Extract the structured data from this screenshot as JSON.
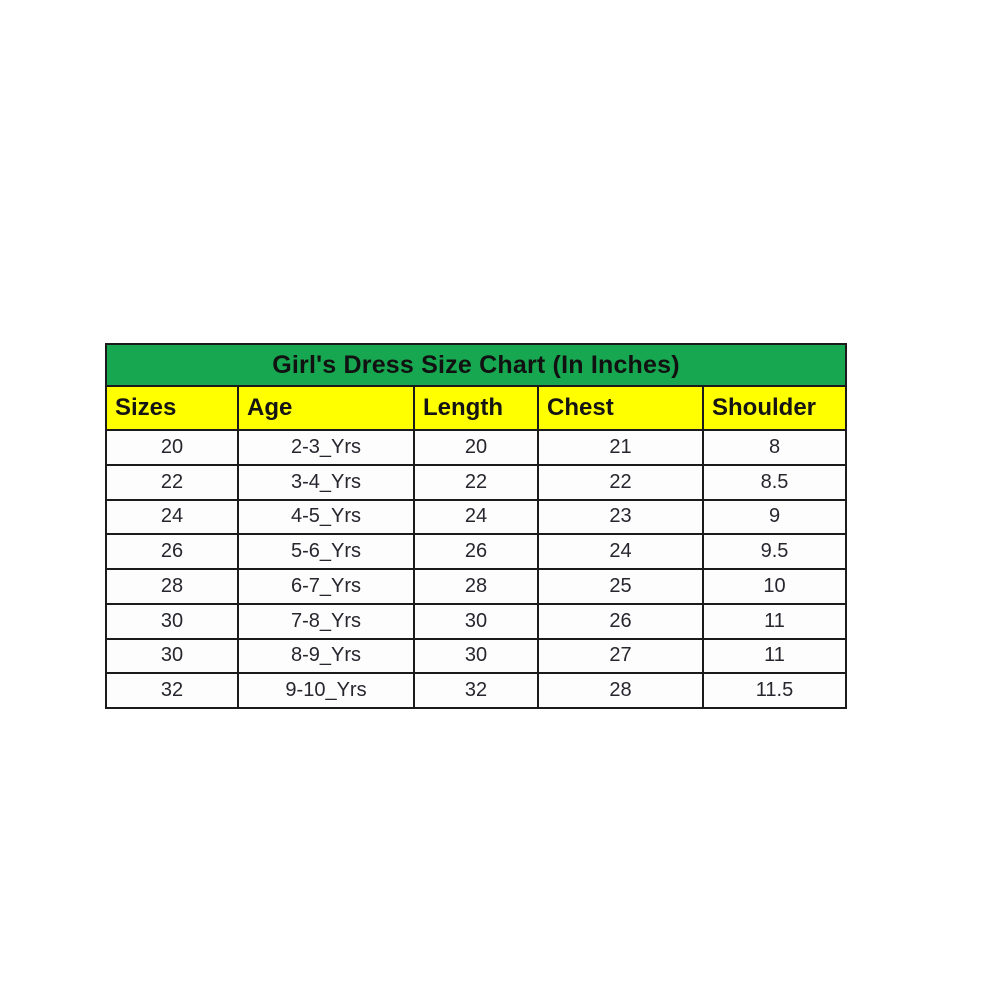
{
  "chart_data": {
    "type": "table",
    "title": "Girl's Dress Size Chart (In Inches)",
    "columns": [
      "Sizes",
      "Age",
      "Length",
      "Chest",
      "Shoulder"
    ],
    "rows": [
      [
        "20",
        "2-3_Yrs",
        "20",
        "21",
        "8"
      ],
      [
        "22",
        "3-4_Yrs",
        "22",
        "22",
        "8.5"
      ],
      [
        "24",
        "4-5_Yrs",
        "24",
        "23",
        "9"
      ],
      [
        "26",
        "5-6_Yrs",
        "26",
        "24",
        "9.5"
      ],
      [
        "28",
        "6-7_Yrs",
        "28",
        "25",
        "10"
      ],
      [
        "30",
        "7-8_Yrs",
        "30",
        "26",
        "11"
      ],
      [
        "30",
        "8-9_Yrs",
        "30",
        "27",
        "11"
      ],
      [
        "32",
        "9-10_Yrs",
        "32",
        "28",
        "11.5"
      ]
    ],
    "colors": {
      "title_background": "#16a750",
      "header_background": "#ffff00",
      "border": "#1b1b1b",
      "text": "#26262e",
      "page_background": "#ffffff"
    },
    "layout_hints": {
      "title_row_span": 5,
      "header_alignment": "left",
      "data_alignment": "center"
    }
  }
}
